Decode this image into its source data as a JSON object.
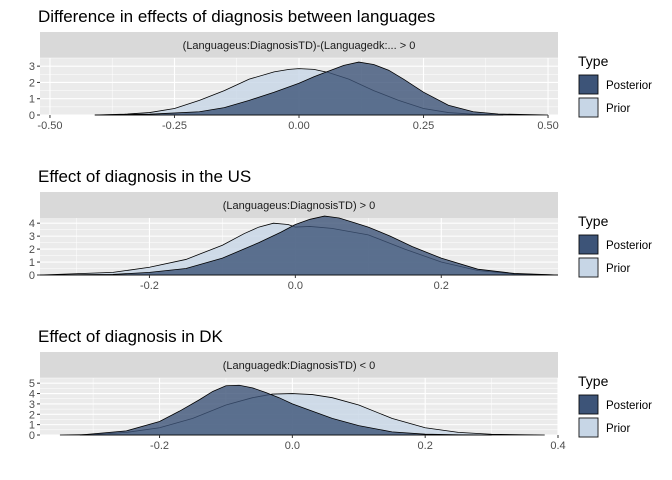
{
  "chart_data": [
    {
      "type": "area",
      "title": "Difference in effects of diagnosis between languages",
      "facet_label": "(Languageus:DiagnosisTD)-(Languagedk:... > 0",
      "xlim": [
        -0.52,
        0.52
      ],
      "ylim": [
        0,
        3.5
      ],
      "x_ticks": [
        -0.5,
        -0.25,
        0.0,
        0.25,
        0.5
      ],
      "x_tick_labels": [
        "-0.50",
        "-0.25",
        "0.00",
        "0.25",
        "0.50"
      ],
      "y_ticks": [
        0,
        1,
        2,
        3
      ],
      "y_tick_labels": [
        "0",
        "1",
        "2",
        "3"
      ],
      "series": [
        {
          "name": "Prior",
          "x": [
            -0.41,
            -0.35,
            -0.3,
            -0.25,
            -0.2,
            -0.15,
            -0.1,
            -0.05,
            -0.02,
            0.0,
            0.03,
            0.06,
            0.1,
            0.15,
            0.2,
            0.25,
            0.3,
            0.35,
            0.41
          ],
          "y": [
            0.0,
            0.05,
            0.15,
            0.4,
            0.9,
            1.5,
            2.2,
            2.65,
            2.8,
            2.85,
            2.8,
            2.6,
            2.2,
            1.5,
            0.9,
            0.4,
            0.15,
            0.05,
            0.0
          ]
        },
        {
          "name": "Posterior",
          "x": [
            -0.41,
            -0.3,
            -0.2,
            -0.15,
            -0.1,
            -0.05,
            0.0,
            0.03,
            0.06,
            0.09,
            0.12,
            0.15,
            0.18,
            0.21,
            0.25,
            0.3,
            0.35,
            0.4,
            0.5
          ],
          "y": [
            0.0,
            0.05,
            0.2,
            0.45,
            0.9,
            1.4,
            1.95,
            2.35,
            2.7,
            3.05,
            3.25,
            3.1,
            2.75,
            2.2,
            1.4,
            0.6,
            0.2,
            0.06,
            0.0
          ]
        }
      ]
    },
    {
      "type": "area",
      "title": "Effect of diagnosis in the US",
      "facet_label": "(Languageus:DiagnosisTD) > 0",
      "xlim": [
        -0.35,
        0.36
      ],
      "ylim": [
        0,
        4.4
      ],
      "x_ticks": [
        -0.2,
        0.0,
        0.2
      ],
      "x_tick_labels": [
        "-0.2",
        "0.0",
        "0.2"
      ],
      "y_ticks": [
        0,
        1,
        2,
        3,
        4
      ],
      "y_tick_labels": [
        "0",
        "1",
        "2",
        "3",
        "4"
      ],
      "series": [
        {
          "name": "Prior",
          "x": [
            -0.35,
            -0.25,
            -0.2,
            -0.15,
            -0.1,
            -0.07,
            -0.05,
            -0.03,
            -0.01,
            0.0,
            0.02,
            0.05,
            0.1,
            0.15,
            0.2,
            0.25,
            0.3,
            0.36
          ],
          "y": [
            0.0,
            0.2,
            0.6,
            1.2,
            2.3,
            3.2,
            3.7,
            4.0,
            3.9,
            3.7,
            3.75,
            3.6,
            3.1,
            2.0,
            1.0,
            0.35,
            0.08,
            0.0
          ]
        },
        {
          "name": "Posterior",
          "x": [
            -0.35,
            -0.25,
            -0.2,
            -0.15,
            -0.1,
            -0.05,
            -0.02,
            0.0,
            0.02,
            0.04,
            0.06,
            0.08,
            0.1,
            0.13,
            0.16,
            0.2,
            0.25,
            0.3,
            0.36
          ],
          "y": [
            0.0,
            0.05,
            0.2,
            0.5,
            1.3,
            2.5,
            3.3,
            3.9,
            4.3,
            4.55,
            4.4,
            4.05,
            3.7,
            3.0,
            2.2,
            1.3,
            0.45,
            0.12,
            0.0
          ]
        }
      ]
    },
    {
      "type": "area",
      "title": "Effect of diagnosis in DK",
      "facet_label": "(Languagedk:DiagnosisTD) < 0",
      "xlim": [
        -0.38,
        0.4
      ],
      "ylim": [
        0,
        5.5
      ],
      "x_ticks": [
        -0.2,
        0.0,
        0.2,
        0.4
      ],
      "x_tick_labels": [
        "-0.2",
        "0.0",
        "0.2",
        "0.4"
      ],
      "y_ticks": [
        0,
        1,
        2,
        3,
        4,
        5
      ],
      "y_tick_labels": [
        "0",
        "1",
        "2",
        "3",
        "4",
        "5"
      ],
      "series": [
        {
          "name": "Prior",
          "x": [
            -0.35,
            -0.3,
            -0.25,
            -0.2,
            -0.15,
            -0.1,
            -0.06,
            -0.03,
            0.0,
            0.03,
            0.06,
            0.1,
            0.15,
            0.2,
            0.25,
            0.3,
            0.35,
            0.38
          ],
          "y": [
            0.0,
            0.05,
            0.25,
            0.7,
            1.6,
            2.9,
            3.6,
            3.95,
            4.0,
            3.9,
            3.6,
            2.9,
            1.6,
            0.7,
            0.25,
            0.07,
            0.02,
            0.0
          ]
        },
        {
          "name": "Posterior",
          "x": [
            -0.32,
            -0.25,
            -0.2,
            -0.17,
            -0.14,
            -0.12,
            -0.1,
            -0.08,
            -0.06,
            -0.04,
            -0.02,
            0.0,
            0.03,
            0.06,
            0.1,
            0.15,
            0.2,
            0.25,
            0.3
          ],
          "y": [
            0.0,
            0.4,
            1.3,
            2.3,
            3.4,
            4.2,
            4.75,
            4.8,
            4.55,
            4.1,
            3.6,
            3.0,
            2.3,
            1.6,
            0.9,
            0.3,
            0.08,
            0.02,
            0.0
          ]
        }
      ]
    }
  ],
  "legend": {
    "title": "Type",
    "items": [
      {
        "label": "Posterior",
        "fill": "#3d5478"
      },
      {
        "label": "Prior",
        "fill": "#c7d6e6"
      }
    ]
  },
  "colors": {
    "posterior_fill": "#3d5478",
    "prior_fill": "#c7d6e6",
    "panel_background": "#ebebeb",
    "strip_background": "#d9d9d9",
    "grid": "#ffffff"
  }
}
